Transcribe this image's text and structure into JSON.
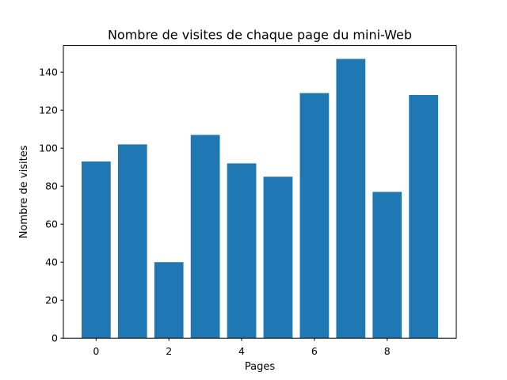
{
  "chart_data": {
    "type": "bar",
    "title": "Nombre de visites de chaque page du mini-Web",
    "xlabel": "Pages",
    "ylabel": "Nombre de visites",
    "categories": [
      0,
      1,
      2,
      3,
      4,
      5,
      6,
      7,
      8,
      9
    ],
    "values": [
      93,
      102,
      40,
      107,
      92,
      85,
      129,
      147,
      77,
      128
    ],
    "xlim": [
      -0.9,
      9.9
    ],
    "ylim": [
      0,
      154
    ],
    "xticks": [
      0,
      2,
      4,
      6,
      8
    ],
    "yticks": [
      0,
      20,
      40,
      60,
      80,
      100,
      120,
      140
    ],
    "bar_width": 0.8,
    "bar_color": "#1f77b4",
    "grid": false,
    "legend": "none"
  }
}
